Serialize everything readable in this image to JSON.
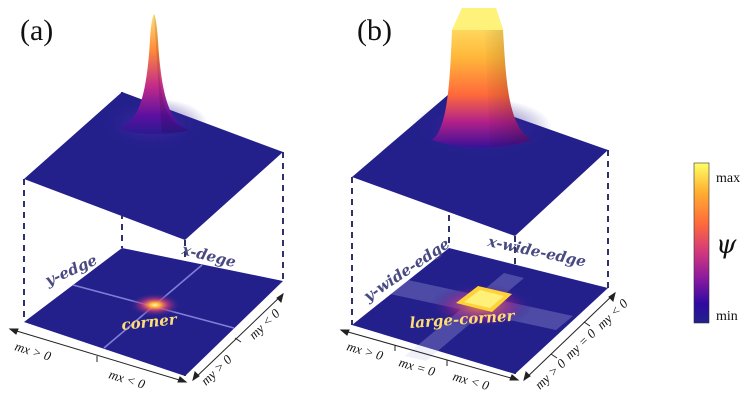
{
  "panels": {
    "a": {
      "label": "(a)",
      "edge_x": "x-dege",
      "edge_y": "y-edge",
      "corner": "corner",
      "axis": {
        "mx_pos": "mx > 0",
        "mx_neg": "mx < 0",
        "my_pos": "my > 0",
        "my_neg": "my < 0"
      }
    },
    "b": {
      "label": "(b)",
      "edge_x": "x-wide-edge",
      "edge_y": "y-wide-edge",
      "corner": "large-corner",
      "axis": {
        "mx_pos": "mx > 0",
        "mx_zero": "mx = 0",
        "mx_neg": "mx < 0",
        "my_pos": "my > 0",
        "my_zero": "my = 0",
        "my_neg": "my < 0"
      }
    }
  },
  "colorbar": {
    "max_label": "max",
    "min_label": "min",
    "symbol": "ψ",
    "colors": [
      "#ffff66",
      "#ffb030",
      "#ff6a3a",
      "#d43a7a",
      "#8c1aa0",
      "#2e0aa0",
      "#23208c"
    ]
  },
  "colors": {
    "base": "#23208c",
    "edge_line": "#7a7ad8",
    "dashed": "#1a1a5a",
    "label": "#4a4a82"
  }
}
